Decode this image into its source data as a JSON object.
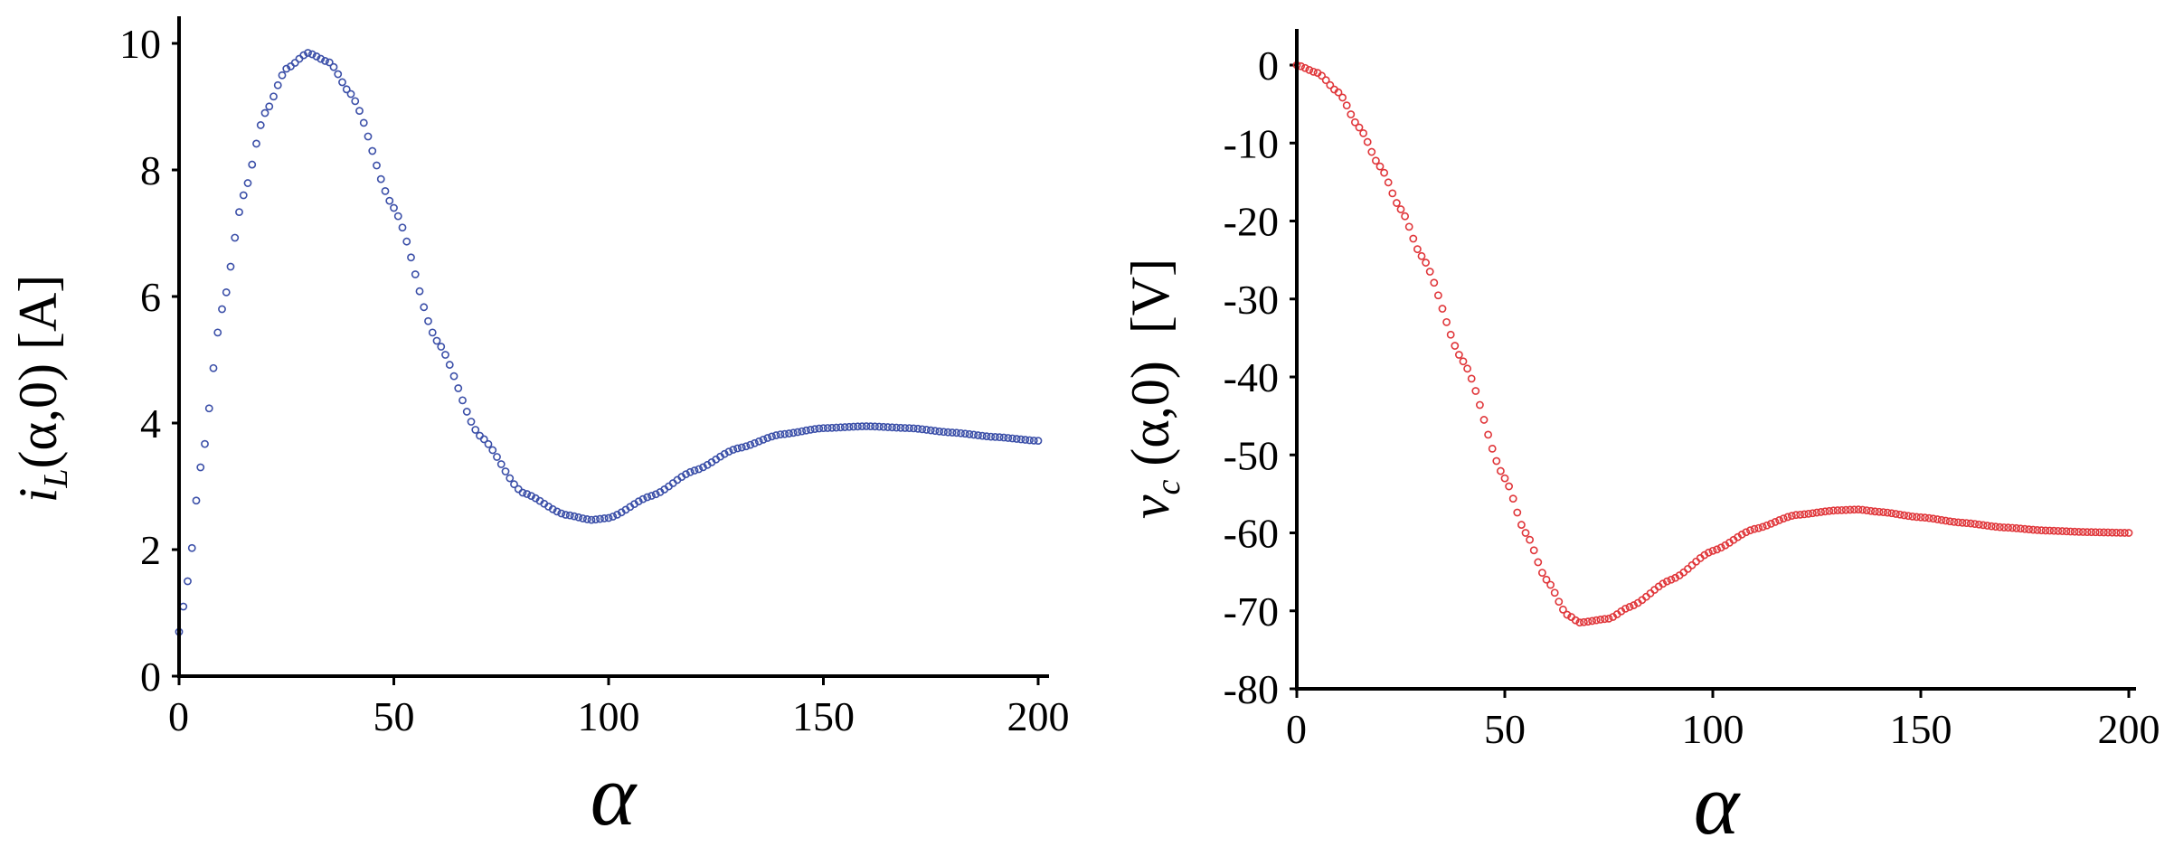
{
  "chart_data": [
    {
      "type": "scatter",
      "ylabel": "i_L(α,0) [A]",
      "ylabel_parts": {
        "main": "i",
        "sub": "L",
        "rest": "(α,0) [A]"
      },
      "xlabel": "α",
      "xlim": [
        0,
        200
      ],
      "ylim": [
        0,
        10
      ],
      "xticks": [
        0,
        50,
        100,
        150,
        200
      ],
      "yticks": [
        0,
        2,
        4,
        6,
        8,
        10
      ],
      "grid": false,
      "marker": "open-circle",
      "color": "#3b4fa8",
      "curve_model": {
        "note": "sampled every 1 α from 0 to 200",
        "x_step": 1,
        "anchors_x": [
          0,
          2,
          5,
          10,
          15,
          20,
          25,
          30,
          35,
          40,
          50,
          60,
          70,
          80,
          90,
          96,
          100,
          110,
          120,
          130,
          140,
          150,
          160,
          170,
          180,
          190,
          200
        ],
        "anchors_y": [
          0.7,
          1.5,
          3.3,
          5.8,
          7.6,
          8.9,
          9.6,
          9.85,
          9.7,
          9.2,
          7.4,
          5.3,
          3.8,
          2.9,
          2.55,
          2.47,
          2.5,
          2.85,
          3.25,
          3.6,
          3.82,
          3.92,
          3.95,
          3.92,
          3.85,
          3.78,
          3.72
        ]
      }
    },
    {
      "type": "scatter",
      "ylabel": "v_c (α,0) [V]",
      "ylabel_parts": {
        "main": "v",
        "sub": "c",
        "rest": " (α,0)  [V]"
      },
      "xlabel": "α",
      "xlim": [
        0,
        200
      ],
      "ylim": [
        -80,
        0
      ],
      "xticks": [
        0,
        50,
        100,
        150,
        200
      ],
      "yticks": [
        0,
        -10,
        -20,
        -30,
        -40,
        -50,
        -60,
        -70,
        -80
      ],
      "grid": false,
      "marker": "open-circle",
      "color": "#e0363a",
      "curve_model": {
        "note": "sampled every 1 α from 0 to 200",
        "x_step": 1,
        "anchors_x": [
          0,
          5,
          10,
          15,
          20,
          25,
          30,
          40,
          50,
          55,
          60,
          65,
          68,
          75,
          80,
          90,
          100,
          110,
          120,
          130,
          135,
          140,
          150,
          160,
          170,
          180,
          190,
          200
        ],
        "anchors_y": [
          0,
          -1,
          -3.5,
          -8,
          -13,
          -18.5,
          -24.5,
          -38,
          -53,
          -60,
          -66,
          -70.5,
          -71.5,
          -71,
          -69.5,
          -66,
          -62.3,
          -59.5,
          -57.7,
          -57.1,
          -57.0,
          -57.3,
          -58.0,
          -58.7,
          -59.3,
          -59.7,
          -59.9,
          -60.0
        ]
      }
    }
  ]
}
